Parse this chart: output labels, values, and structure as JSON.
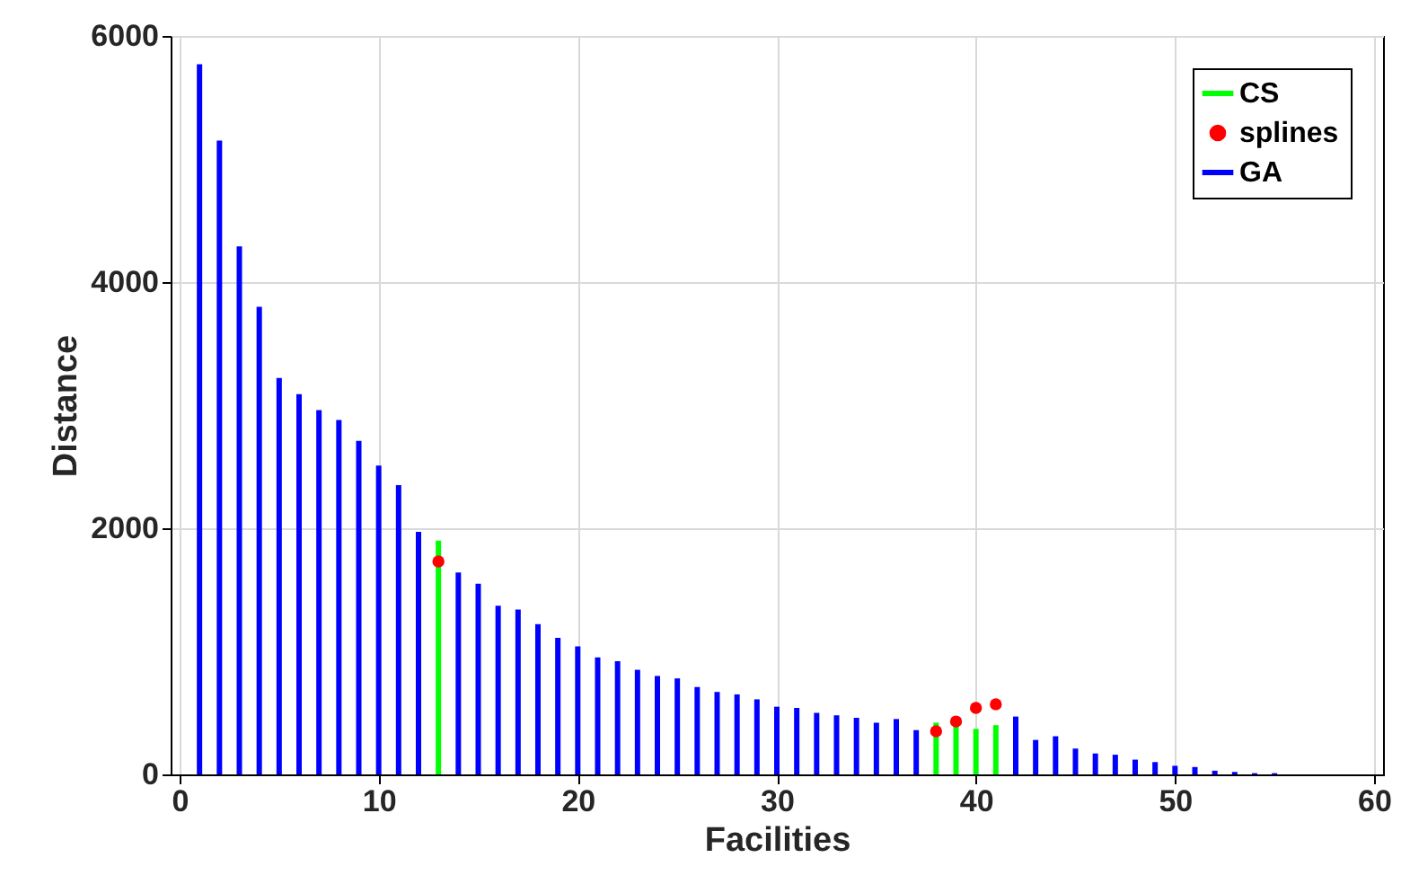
{
  "chart_data": {
    "type": "bar",
    "xlabel": "Facilities",
    "ylabel": "Distance",
    "xlim": [
      0,
      60
    ],
    "xticks": [
      0,
      10,
      20,
      30,
      40,
      50,
      60
    ],
    "ylim": [
      0,
      6000
    ],
    "yticks": [
      0,
      2000,
      4000,
      6000
    ],
    "grid": true,
    "legend": "top right",
    "series": [
      {
        "name": "CS",
        "color": "#00ff00",
        "x": [
          13,
          38,
          39,
          40,
          41
        ],
        "values": [
          1900,
          420,
          400,
          370,
          400
        ]
      },
      {
        "name": "splines",
        "type": "scatter",
        "marker": "circle",
        "color": "#ff0000",
        "x": [
          13,
          38,
          39,
          40,
          41
        ],
        "values": [
          1730,
          350,
          430,
          540,
          570
        ]
      },
      {
        "name": "GA",
        "color": "#0000ff",
        "x": [
          1,
          2,
          3,
          4,
          5,
          6,
          7,
          8,
          9,
          10,
          11,
          12,
          13,
          14,
          15,
          16,
          17,
          18,
          19,
          20,
          21,
          22,
          23,
          24,
          25,
          26,
          27,
          28,
          29,
          30,
          31,
          32,
          33,
          34,
          35,
          36,
          37,
          38,
          39,
          40,
          41,
          42,
          43,
          44,
          45,
          46,
          47,
          48,
          49,
          50,
          51,
          52,
          53,
          54,
          55
        ],
        "values": [
          5770,
          5150,
          4290,
          3800,
          3220,
          3090,
          2960,
          2880,
          2710,
          2510,
          2350,
          1970,
          null,
          1640,
          1550,
          1370,
          1340,
          1220,
          1110,
          1040,
          950,
          920,
          850,
          800,
          780,
          710,
          670,
          650,
          610,
          550,
          540,
          500,
          480,
          460,
          420,
          450,
          360,
          null,
          null,
          null,
          null,
          470,
          280,
          310,
          210,
          170,
          160,
          120,
          100,
          70,
          60,
          30,
          20,
          10,
          10
        ]
      }
    ]
  }
}
